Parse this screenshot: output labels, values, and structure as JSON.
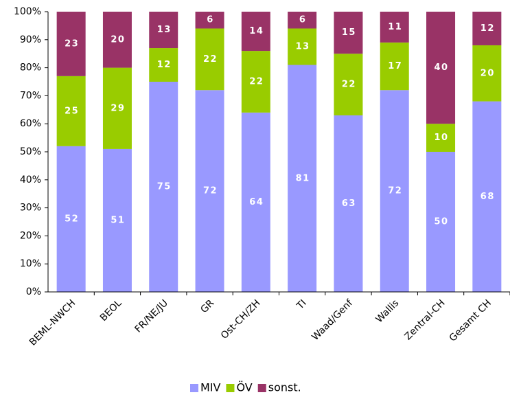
{
  "chart_data": {
    "type": "stacked_bar",
    "categories": [
      "BEML-NWCH",
      "BEOL",
      "FR/NE/JU",
      "GR",
      "Ost-CH/ZH",
      "TI",
      "Waad/Genf",
      "Wallis",
      "Zentral-CH",
      "Gesamt CH"
    ],
    "series": [
      {
        "name": "MIV",
        "color": "#9999ff",
        "values": [
          52,
          51,
          75,
          72,
          64,
          81,
          63,
          72,
          50,
          68
        ]
      },
      {
        "name": "ÖV",
        "color": "#99cc00",
        "values": [
          25,
          29,
          12,
          22,
          22,
          13,
          22,
          17,
          10,
          20
        ]
      },
      {
        "name": "sonst.",
        "color": "#993366",
        "values": [
          23,
          20,
          13,
          6,
          14,
          6,
          15,
          11,
          40,
          12
        ]
      }
    ],
    "ylim": [
      0,
      100
    ],
    "yticks": [
      {
        "value": 0,
        "label": "0%"
      },
      {
        "value": 10,
        "label": "10%"
      },
      {
        "value": 20,
        "label": "20%"
      },
      {
        "value": 30,
        "label": "30%"
      },
      {
        "value": 40,
        "label": "40%"
      },
      {
        "value": 50,
        "label": "50%"
      },
      {
        "value": 60,
        "label": "60%"
      },
      {
        "value": 70,
        "label": "70%"
      },
      {
        "value": 80,
        "label": "80%"
      },
      {
        "value": 90,
        "label": "90%"
      },
      {
        "value": 100,
        "label": "100%"
      }
    ],
    "legend": "bottom"
  }
}
